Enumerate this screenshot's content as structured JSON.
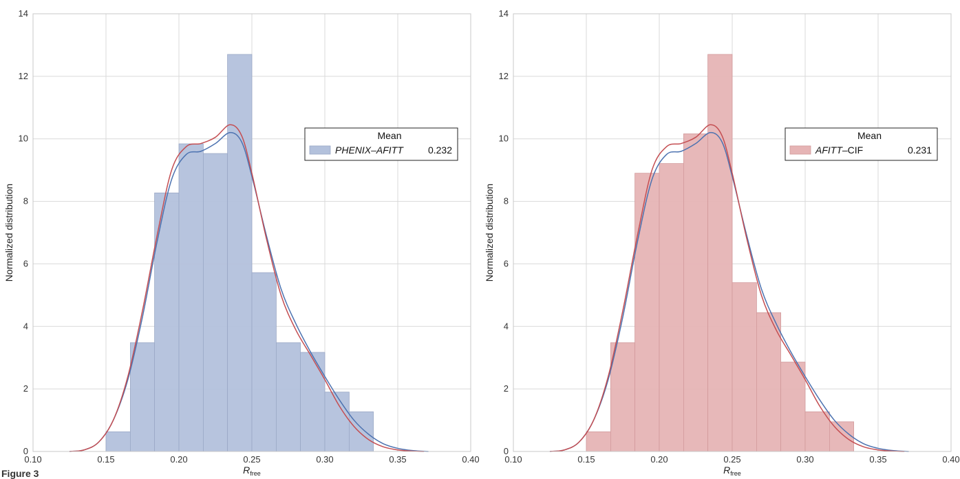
{
  "caption": "Figure 3",
  "chart_data": [
    {
      "type": "histogram",
      "xlabel": "R",
      "xlabel_sub": "free",
      "ylabel": "Normalized distribution",
      "xlim": [
        0.1,
        0.4
      ],
      "ylim": [
        0,
        14
      ],
      "xticks": [
        "0.10",
        "0.15",
        "0.20",
        "0.25",
        "0.30",
        "0.35",
        "0.40"
      ],
      "yticks": [
        "0",
        "2",
        "4",
        "6",
        "8",
        "10",
        "12",
        "14"
      ],
      "grid": true,
      "bins": [
        {
          "x0": 0.15,
          "x1": 0.1667,
          "value": 0.63
        },
        {
          "x0": 0.1667,
          "x1": 0.1833,
          "value": 3.48
        },
        {
          "x0": 0.1833,
          "x1": 0.2,
          "value": 8.27
        },
        {
          "x0": 0.2,
          "x1": 0.2167,
          "value": 9.84
        },
        {
          "x0": 0.2167,
          "x1": 0.2333,
          "value": 9.53
        },
        {
          "x0": 0.2333,
          "x1": 0.25,
          "value": 12.7
        },
        {
          "x0": 0.25,
          "x1": 0.2667,
          "value": 5.72
        },
        {
          "x0": 0.2667,
          "x1": 0.2833,
          "value": 3.48
        },
        {
          "x0": 0.2833,
          "x1": 0.3,
          "value": 3.17
        },
        {
          "x0": 0.3,
          "x1": 0.3167,
          "value": 1.9
        },
        {
          "x0": 0.3167,
          "x1": 0.3333,
          "value": 1.27
        }
      ],
      "bar_color": "#b3c1dc",
      "bar_edge": "#9aa8c6",
      "kde": [
        {
          "color": "#4c72b0",
          "points": [
            [
              0.125,
              0
            ],
            [
              0.135,
              0.05
            ],
            [
              0.145,
              0.3
            ],
            [
              0.155,
              1.0
            ],
            [
              0.165,
              2.3
            ],
            [
              0.175,
              4.3
            ],
            [
              0.185,
              6.7
            ],
            [
              0.195,
              8.7
            ],
            [
              0.205,
              9.5
            ],
            [
              0.215,
              9.6
            ],
            [
              0.225,
              9.85
            ],
            [
              0.235,
              10.2
            ],
            [
              0.243,
              9.9
            ],
            [
              0.25,
              8.8
            ],
            [
              0.26,
              6.9
            ],
            [
              0.27,
              5.2
            ],
            [
              0.28,
              4.1
            ],
            [
              0.29,
              3.2
            ],
            [
              0.3,
              2.4
            ],
            [
              0.31,
              1.65
            ],
            [
              0.32,
              1.0
            ],
            [
              0.33,
              0.55
            ],
            [
              0.34,
              0.25
            ],
            [
              0.35,
              0.1
            ],
            [
              0.36,
              0.03
            ],
            [
              0.371,
              0
            ]
          ]
        },
        {
          "color": "#c44e52",
          "points": [
            [
              0.125,
              0
            ],
            [
              0.135,
              0.05
            ],
            [
              0.145,
              0.3
            ],
            [
              0.155,
              1.0
            ],
            [
              0.165,
              2.4
            ],
            [
              0.175,
              4.5
            ],
            [
              0.185,
              6.9
            ],
            [
              0.195,
              9.0
            ],
            [
              0.205,
              9.75
            ],
            [
              0.215,
              9.85
            ],
            [
              0.225,
              10.05
            ],
            [
              0.235,
              10.45
            ],
            [
              0.243,
              10.1
            ],
            [
              0.25,
              8.9
            ],
            [
              0.26,
              6.8
            ],
            [
              0.27,
              5.0
            ],
            [
              0.28,
              3.9
            ],
            [
              0.29,
              3.1
            ],
            [
              0.3,
              2.3
            ],
            [
              0.31,
              1.45
            ],
            [
              0.32,
              0.8
            ],
            [
              0.33,
              0.38
            ],
            [
              0.34,
              0.15
            ],
            [
              0.35,
              0.05
            ],
            [
              0.36,
              0.01
            ],
            [
              0.368,
              0
            ]
          ]
        }
      ],
      "legend": {
        "title": "Mean",
        "label": "PHENIX–AFITT",
        "value": "0.232",
        "label_style": "italic",
        "placement": "upper-right"
      }
    },
    {
      "type": "histogram",
      "xlabel": "R",
      "xlabel_sub": "free",
      "ylabel": "Normalized distribution",
      "xlim": [
        0.1,
        0.4
      ],
      "ylim": [
        0,
        14
      ],
      "xticks": [
        "0.10",
        "0.15",
        "0.20",
        "0.25",
        "0.30",
        "0.35",
        "0.40"
      ],
      "yticks": [
        "0",
        "2",
        "4",
        "6",
        "8",
        "10",
        "12",
        "14"
      ],
      "grid": true,
      "bins": [
        {
          "x0": 0.15,
          "x1": 0.1667,
          "value": 0.63
        },
        {
          "x0": 0.1667,
          "x1": 0.1833,
          "value": 3.48
        },
        {
          "x0": 0.1833,
          "x1": 0.2,
          "value": 8.9
        },
        {
          "x0": 0.2,
          "x1": 0.2167,
          "value": 9.21
        },
        {
          "x0": 0.2167,
          "x1": 0.2333,
          "value": 10.16
        },
        {
          "x0": 0.2333,
          "x1": 0.25,
          "value": 12.7
        },
        {
          "x0": 0.25,
          "x1": 0.2667,
          "value": 5.4
        },
        {
          "x0": 0.2667,
          "x1": 0.2833,
          "value": 4.44
        },
        {
          "x0": 0.2833,
          "x1": 0.3,
          "value": 2.86
        },
        {
          "x0": 0.3,
          "x1": 0.3167,
          "value": 1.27
        },
        {
          "x0": 0.3167,
          "x1": 0.3333,
          "value": 0.95
        }
      ],
      "bar_color": "#e6b4b5",
      "bar_edge": "#d29a9c",
      "kde": [
        {
          "color": "#4c72b0",
          "points": [
            [
              0.125,
              0
            ],
            [
              0.135,
              0.05
            ],
            [
              0.145,
              0.3
            ],
            [
              0.155,
              1.0
            ],
            [
              0.165,
              2.3
            ],
            [
              0.175,
              4.3
            ],
            [
              0.185,
              6.7
            ],
            [
              0.195,
              8.7
            ],
            [
              0.205,
              9.5
            ],
            [
              0.215,
              9.6
            ],
            [
              0.225,
              9.85
            ],
            [
              0.235,
              10.2
            ],
            [
              0.243,
              9.9
            ],
            [
              0.25,
              8.8
            ],
            [
              0.26,
              6.9
            ],
            [
              0.27,
              5.2
            ],
            [
              0.28,
              4.1
            ],
            [
              0.29,
              3.2
            ],
            [
              0.3,
              2.4
            ],
            [
              0.31,
              1.65
            ],
            [
              0.32,
              1.0
            ],
            [
              0.33,
              0.55
            ],
            [
              0.34,
              0.25
            ],
            [
              0.35,
              0.1
            ],
            [
              0.36,
              0.03
            ],
            [
              0.371,
              0
            ]
          ]
        },
        {
          "color": "#c44e52",
          "points": [
            [
              0.125,
              0
            ],
            [
              0.135,
              0.05
            ],
            [
              0.145,
              0.3
            ],
            [
              0.155,
              1.0
            ],
            [
              0.165,
              2.4
            ],
            [
              0.175,
              4.5
            ],
            [
              0.185,
              6.9
            ],
            [
              0.195,
              9.0
            ],
            [
              0.205,
              9.75
            ],
            [
              0.215,
              9.85
            ],
            [
              0.225,
              10.05
            ],
            [
              0.235,
              10.45
            ],
            [
              0.243,
              10.1
            ],
            [
              0.25,
              8.9
            ],
            [
              0.26,
              6.8
            ],
            [
              0.27,
              5.0
            ],
            [
              0.28,
              3.9
            ],
            [
              0.29,
              3.1
            ],
            [
              0.3,
              2.3
            ],
            [
              0.31,
              1.45
            ],
            [
              0.32,
              0.8
            ],
            [
              0.33,
              0.38
            ],
            [
              0.34,
              0.15
            ],
            [
              0.35,
              0.05
            ],
            [
              0.36,
              0.01
            ],
            [
              0.368,
              0
            ]
          ]
        }
      ],
      "legend": {
        "title": "Mean",
        "label_italic": "AFITT",
        "label_rest": "–CIF",
        "value": "0.231",
        "placement": "upper-right"
      }
    }
  ]
}
